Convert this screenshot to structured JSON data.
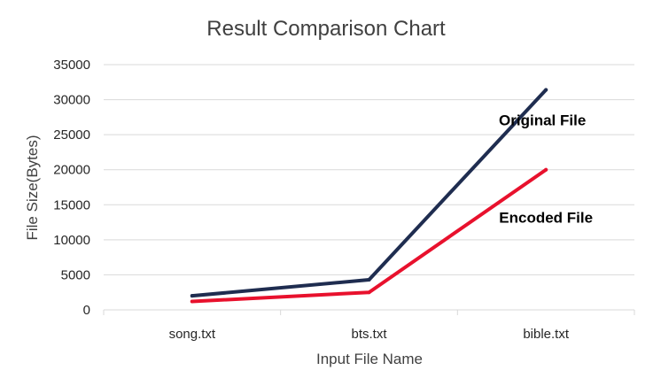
{
  "chart_data": {
    "type": "line",
    "title": "Result Comparison Chart",
    "xlabel": "Input File Name",
    "ylabel": "File Size(Bytes)",
    "categories": [
      "song.txt",
      "bts.txt",
      "bible.txt"
    ],
    "ylim": [
      0,
      35000
    ],
    "yticks": [
      0,
      5000,
      10000,
      15000,
      20000,
      25000,
      30000,
      35000
    ],
    "grid": true,
    "legend": "none",
    "series": [
      {
        "name": "Original File",
        "values": [
          2000,
          4300,
          31400
        ],
        "color": "#1f2d50"
      },
      {
        "name": "Encoded File",
        "values": [
          1200,
          2500,
          20000
        ],
        "color": "#e8112d"
      }
    ]
  }
}
